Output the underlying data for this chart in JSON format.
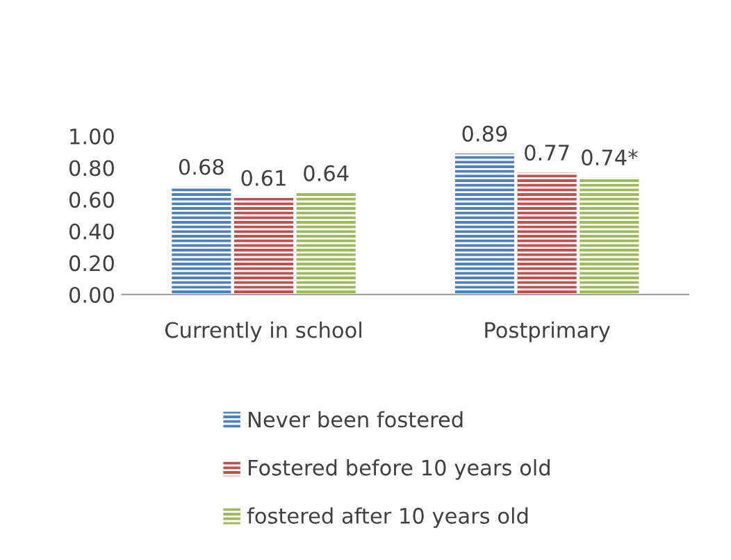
{
  "chart_data": {
    "type": "bar",
    "categories": [
      "Currently in school",
      "Postprimary"
    ],
    "series": [
      {
        "name": "Never been fostered",
        "color": "#4f81bd",
        "values": [
          0.68,
          0.89
        ],
        "value_labels": [
          "0.68",
          "0.89"
        ]
      },
      {
        "name": "Fostered before 10 years old",
        "color": "#c0504d",
        "values": [
          0.61,
          0.77
        ],
        "value_labels": [
          "0.61",
          "0.77"
        ]
      },
      {
        "name": "fostered after 10 years old",
        "color": "#9bbb59",
        "values": [
          0.64,
          0.74
        ],
        "value_labels": [
          "0.64",
          "0.74*"
        ]
      }
    ],
    "ylim": [
      0,
      1
    ],
    "yticks": [
      {
        "value": 0,
        "label": "0.00"
      },
      {
        "value": 0.2,
        "label": "0.20"
      },
      {
        "value": 0.4,
        "label": "0.40"
      },
      {
        "value": 0.6,
        "label": "0.60"
      },
      {
        "value": 0.8,
        "label": "0.80"
      },
      {
        "value": 1,
        "label": "1.00"
      }
    ],
    "grid": false,
    "legend": "bottom"
  }
}
